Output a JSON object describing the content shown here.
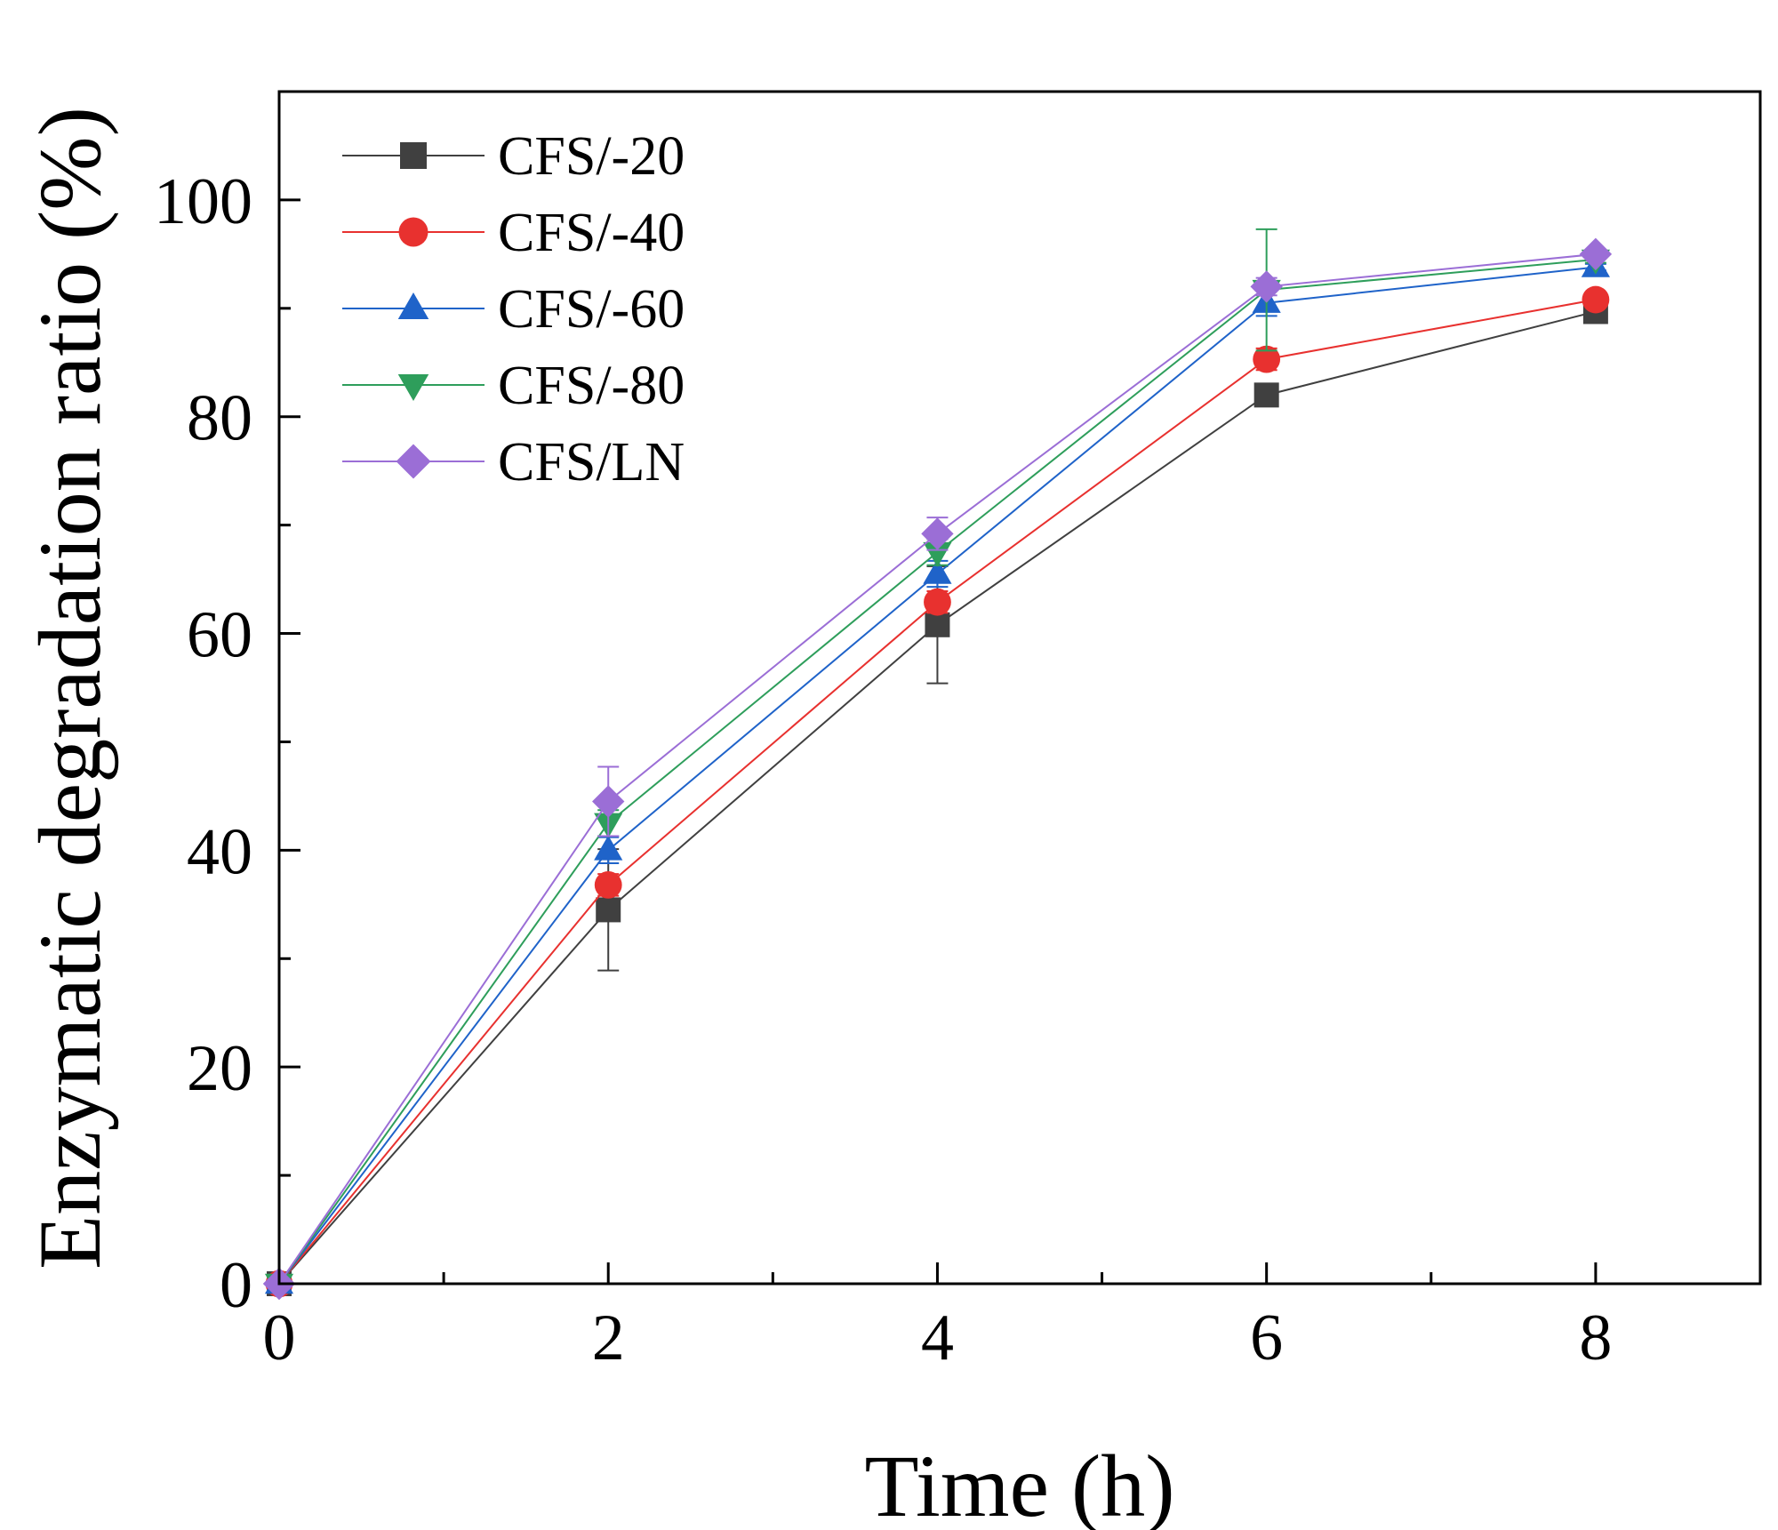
{
  "chart_data": {
    "type": "line",
    "title": "",
    "xlabel": "Time (h)",
    "ylabel": "Enzymatic degradation ratio (%)",
    "xlim": [
      0,
      9
    ],
    "ylim": [
      0,
      110
    ],
    "x_ticks": [
      0,
      2,
      4,
      6,
      8
    ],
    "x_tick_labels": [
      "0",
      "2",
      "4",
      "6",
      "8"
    ],
    "x_minor_ticks": [
      1,
      3,
      5,
      7
    ],
    "y_ticks": [
      0,
      20,
      40,
      60,
      80,
      100
    ],
    "y_tick_labels": [
      "0",
      "20",
      "40",
      "60",
      "80",
      "100"
    ],
    "y_minor_ticks": [
      10,
      30,
      50,
      70,
      90
    ],
    "legend_position": "top-left",
    "x": [
      0,
      2,
      4,
      6,
      8
    ],
    "series": [
      {
        "name": "CFS/-20",
        "color": "#404040",
        "marker": "square",
        "values": [
          0,
          34.5,
          60.8,
          82.0,
          89.7
        ],
        "errors": [
          0,
          5.6,
          5.4,
          0.5,
          0.3
        ]
      },
      {
        "name": "CFS/-40",
        "color": "#e8312f",
        "marker": "circle",
        "values": [
          0,
          36.8,
          62.9,
          85.3,
          90.8
        ],
        "errors": [
          0,
          1.0,
          1.0,
          1.0,
          0.3
        ]
      },
      {
        "name": "CFS/-60",
        "color": "#1f63c9",
        "marker": "triangle-up",
        "values": [
          0,
          40.0,
          65.5,
          90.5,
          93.8
        ],
        "errors": [
          0,
          1.2,
          1.2,
          1.2,
          0.3
        ]
      },
      {
        "name": "CFS/-80",
        "color": "#2e9e5b",
        "marker": "triangle-down",
        "values": [
          0,
          42.5,
          67.5,
          91.7,
          94.5
        ],
        "errors": [
          0,
          1.2,
          1.2,
          5.6,
          0.3
        ]
      },
      {
        "name": "CFS/LN",
        "color": "#9b6ed6",
        "marker": "diamond",
        "values": [
          0,
          44.5,
          69.2,
          92.0,
          95.0
        ],
        "errors": [
          0,
          3.2,
          1.5,
          0.8,
          0.3
        ]
      }
    ]
  }
}
